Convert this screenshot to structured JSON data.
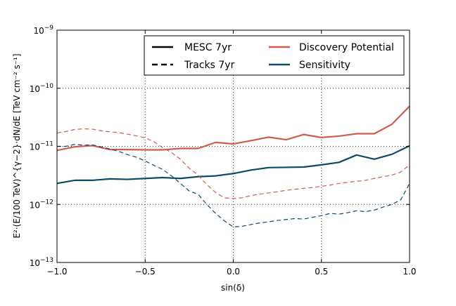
{
  "chart_data": {
    "type": "line",
    "xlabel": "sin(δ)",
    "ylabel": "E²·(E/100 TeV)^{γ−2}·dN/dE  [TeV cm⁻² s⁻¹]",
    "xlim": [
      -1.0,
      1.0
    ],
    "ylim": [
      1e-13,
      1e-09
    ],
    "yscale": "log",
    "grid": true,
    "grid_style": "dotted",
    "x_ticks": [
      {
        "value": -1.0,
        "label": "−1.0"
      },
      {
        "value": -0.5,
        "label": "−0.5"
      },
      {
        "value": 0.0,
        "label": "0.0"
      },
      {
        "value": 0.5,
        "label": "0.5"
      },
      {
        "value": 1.0,
        "label": "1.0"
      }
    ],
    "y_ticks": [
      {
        "value": 1e-13,
        "mant": "10",
        "exp": "−13"
      },
      {
        "value": 1e-12,
        "mant": "10",
        "exp": "−12"
      },
      {
        "value": 1e-11,
        "mant": "10",
        "exp": "−11"
      },
      {
        "value": 1e-10,
        "mant": "10",
        "exp": "−10"
      },
      {
        "value": 1e-09,
        "mant": "10",
        "exp": "−9"
      }
    ],
    "legend": {
      "placement": "top-right",
      "entries": [
        {
          "label": "MESC 7yr",
          "style": "solid",
          "color": "#000000"
        },
        {
          "label": "Tracks 7yr",
          "style": "dashed",
          "color": "#000000"
        },
        {
          "label": "Discovery Potential",
          "style": "solid",
          "color": "#cd5c4e"
        },
        {
          "label": "Sensitivity",
          "style": "solid",
          "color": "#0c4a68"
        }
      ]
    },
    "series": [
      {
        "color": "#cd5c4e",
        "style": "solid",
        "width": 2.2,
        "x": [
          -1.0,
          -0.9,
          -0.8,
          -0.7,
          -0.6,
          -0.5,
          -0.4,
          -0.3,
          -0.2,
          -0.1,
          0.0,
          0.1,
          0.2,
          0.3,
          0.4,
          0.5,
          0.6,
          0.7,
          0.8,
          0.9,
          1.0
        ],
        "y": [
          8.5e-12,
          9.8e-12,
          1.03e-11,
          8.8e-12,
          8.8e-12,
          8.7e-12,
          8.7e-12,
          9.2e-12,
          9.2e-12,
          1.17e-11,
          1.1e-11,
          1.25e-11,
          1.44e-11,
          1.3e-11,
          1.6e-11,
          1.42e-11,
          1.5e-11,
          1.65e-11,
          1.65e-11,
          2.4e-11,
          4.9e-11
        ]
      },
      {
        "color": "#0c4a68",
        "style": "solid",
        "width": 2.2,
        "x": [
          -1.0,
          -0.9,
          -0.8,
          -0.7,
          -0.6,
          -0.5,
          -0.4,
          -0.3,
          -0.2,
          -0.1,
          0.0,
          0.1,
          0.2,
          0.3,
          0.4,
          0.5,
          0.6,
          0.7,
          0.8,
          0.9,
          1.0
        ],
        "y": [
          2.3e-12,
          2.6e-12,
          2.6e-12,
          2.75e-12,
          2.7e-12,
          2.8e-12,
          2.9e-12,
          2.8e-12,
          3e-12,
          3.1e-12,
          3.4e-12,
          3.9e-12,
          4.3e-12,
          4.35e-12,
          4.4e-12,
          4.8e-12,
          5.3e-12,
          7.1e-12,
          6e-12,
          7.3e-12,
          1.02e-11
        ]
      },
      {
        "color": "#cd5c4e",
        "style": "dashed",
        "width": 1.2,
        "x": [
          -1.0,
          -0.95,
          -0.9,
          -0.85,
          -0.8,
          -0.75,
          -0.7,
          -0.65,
          -0.6,
          -0.55,
          -0.5,
          -0.45,
          -0.4,
          -0.35,
          -0.3,
          -0.25,
          -0.2,
          -0.15,
          -0.1,
          -0.05,
          0.0,
          0.05,
          0.1,
          0.15,
          0.2,
          0.25,
          0.3,
          0.35,
          0.4,
          0.45,
          0.5,
          0.55,
          0.6,
          0.65,
          0.7,
          0.75,
          0.8,
          0.85,
          0.9,
          0.95,
          1.0
        ],
        "y": [
          1.7e-11,
          1.8e-11,
          1.95e-11,
          2e-11,
          1.98e-11,
          1.85e-11,
          1.78e-11,
          1.72e-11,
          1.62e-11,
          1.52e-11,
          1.4e-11,
          1.2e-11,
          9.5e-12,
          7.8e-12,
          6e-12,
          4.2e-12,
          3.2e-12,
          2.2e-12,
          1.6e-12,
          1.3e-12,
          1.26e-12,
          1.3e-12,
          1.42e-12,
          1.5e-12,
          1.58e-12,
          1.65e-12,
          1.75e-12,
          1.82e-12,
          1.9e-12,
          1.95e-12,
          2.05e-12,
          2.15e-12,
          2.3e-12,
          2.4e-12,
          2.5e-12,
          2.6e-12,
          2.8e-12,
          3e-12,
          3.2e-12,
          3.6e-12,
          4.8e-12
        ]
      },
      {
        "color": "#0c4a68",
        "style": "dashed",
        "width": 1.2,
        "x": [
          -1.0,
          -0.95,
          -0.9,
          -0.85,
          -0.8,
          -0.75,
          -0.7,
          -0.65,
          -0.6,
          -0.55,
          -0.5,
          -0.45,
          -0.4,
          -0.35,
          -0.3,
          -0.25,
          -0.2,
          -0.15,
          -0.1,
          -0.05,
          0.0,
          0.05,
          0.1,
          0.15,
          0.2,
          0.25,
          0.3,
          0.35,
          0.4,
          0.45,
          0.5,
          0.55,
          0.6,
          0.65,
          0.7,
          0.75,
          0.8,
          0.85,
          0.9,
          0.95,
          1.0
        ],
        "y": [
          1e-11,
          1e-11,
          1.08e-11,
          1.05e-11,
          1.06e-11,
          9.8e-12,
          9e-12,
          8.2e-12,
          7.2e-12,
          6.5e-12,
          5.6e-12,
          4.7e-12,
          4e-12,
          3.1e-12,
          2.3e-12,
          1.7e-12,
          1.5e-12,
          1e-12,
          7e-13,
          5.2e-13,
          4.1e-13,
          4.2e-13,
          4.5e-13,
          4.8e-13,
          5e-13,
          5.3e-13,
          5.5e-13,
          5.7e-13,
          5.6e-13,
          6e-13,
          6.4e-13,
          7e-13,
          6.8e-13,
          7.2e-13,
          7.8e-13,
          7.5e-13,
          8e-13,
          9e-13,
          1e-12,
          1.2e-12,
          2.3e-12
        ]
      }
    ]
  }
}
